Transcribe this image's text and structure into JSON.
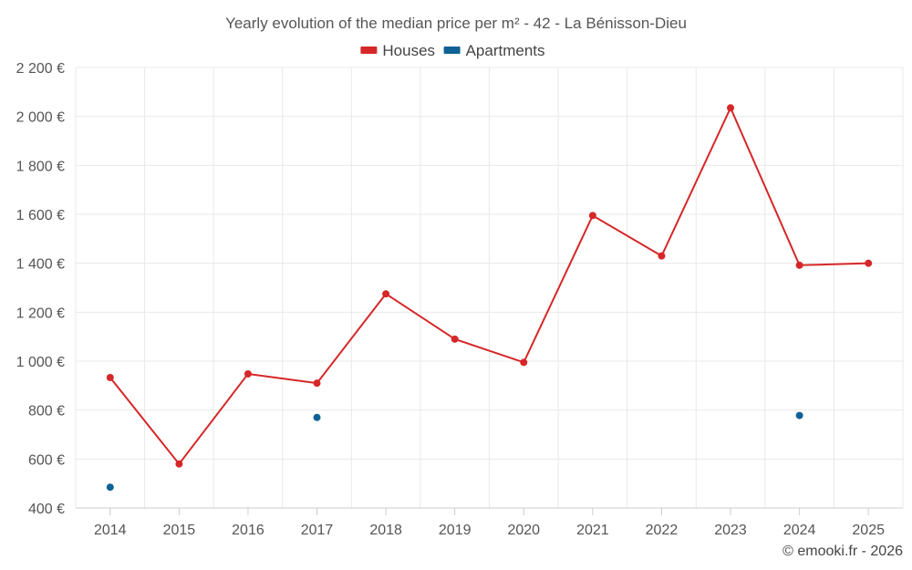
{
  "chart_data": {
    "type": "line",
    "title": "Yearly evolution of the median price per m² - 42 - La Bénisson-Dieu",
    "categories": [
      "2014",
      "2015",
      "2016",
      "2017",
      "2018",
      "2019",
      "2020",
      "2021",
      "2022",
      "2023",
      "2024",
      "2025"
    ],
    "series": [
      {
        "name": "Houses",
        "color": "#d62728",
        "values": [
          933,
          580,
          948,
          910,
          1275,
          1090,
          995,
          1595,
          1430,
          2035,
          1392,
          1400
        ]
      },
      {
        "name": "Apartments",
        "color": "#0e6296",
        "values": [
          485,
          null,
          null,
          770,
          null,
          null,
          null,
          null,
          null,
          null,
          778,
          null
        ]
      }
    ],
    "ylim": [
      400,
      2200
    ],
    "yticks": [
      400,
      600,
      800,
      1000,
      1200,
      1400,
      1600,
      1800,
      2000,
      2200
    ],
    "ytick_labels": [
      "400 €",
      "600 €",
      "800 €",
      "1 000 €",
      "1 200 €",
      "1 400 €",
      "1 600 €",
      "1 800 €",
      "2 000 €",
      "2 200 €"
    ],
    "xlabel": "",
    "ylabel": "",
    "grid": true,
    "legend_position": "top-center"
  },
  "credit": "© emooki.fr - 2026"
}
